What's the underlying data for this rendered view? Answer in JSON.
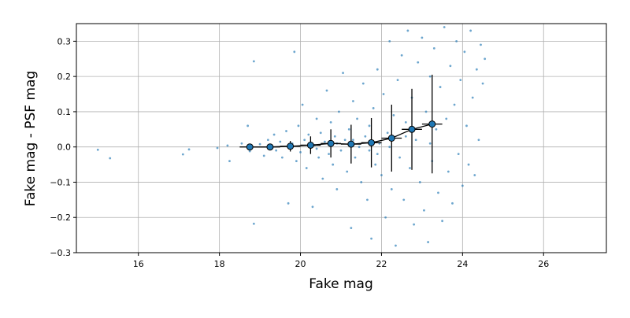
{
  "chart_data": {
    "type": "scatter",
    "xlabel": "Fake mag",
    "ylabel": "Fake mag - PSF mag",
    "xlim": [
      14.47,
      27.55
    ],
    "ylim": [
      -0.3,
      0.35
    ],
    "xticks": [
      16,
      18,
      20,
      22,
      24,
      26
    ],
    "yticks": [
      {
        "value": -0.3,
        "label": "−0.3"
      },
      {
        "value": -0.2,
        "label": "−0.2"
      },
      {
        "value": -0.1,
        "label": "−0.1"
      },
      {
        "value": 0,
        "label": "0.0"
      },
      0.1,
      0.2,
      0.3
    ],
    "grid": true,
    "series": [
      {
        "color": "#1f77b4",
        "x": [
          15.0,
          15.3,
          17.1,
          17.25,
          17.95,
          18.2,
          18.25,
          18.55,
          18.7,
          18.75,
          18.85,
          18.85,
          19.0,
          19.1,
          19.2,
          19.35,
          19.4,
          19.5,
          19.55,
          19.65,
          19.7,
          19.8,
          19.85,
          19.9,
          19.95,
          20.0,
          20.05,
          20.1,
          20.15,
          20.2,
          20.3,
          20.35,
          20.4,
          20.45,
          20.5,
          20.55,
          20.6,
          20.65,
          20.7,
          20.75,
          20.8,
          20.85,
          20.9,
          20.95,
          21.0,
          21.05,
          21.1,
          21.15,
          21.2,
          21.25,
          21.3,
          21.35,
          21.4,
          21.45,
          21.5,
          21.55,
          21.6,
          21.65,
          21.7,
          21.75,
          21.8,
          21.85,
          21.9,
          21.95,
          22.0,
          22.05,
          22.1,
          22.15,
          22.2,
          22.25,
          22.3,
          22.35,
          22.4,
          22.45,
          22.5,
          22.55,
          22.6,
          22.65,
          22.7,
          22.75,
          22.8,
          22.85,
          22.9,
          22.95,
          23.0,
          23.05,
          23.1,
          23.15,
          23.2,
          23.25,
          23.3,
          23.35,
          23.4,
          23.45,
          23.5,
          23.55,
          23.6,
          23.65,
          23.7,
          23.75,
          23.8,
          23.85,
          23.9,
          23.95,
          24.0,
          24.05,
          24.1,
          24.15,
          24.2,
          24.25,
          24.3,
          24.35,
          24.4,
          24.45,
          24.5,
          24.55,
          21.3,
          21.7,
          22.2,
          20.9,
          22.6,
          23.2,
          20.4,
          21.9
        ],
        "values": [
          -0.008,
          -0.032,
          -0.021,
          -0.007,
          -0.003,
          0.004,
          -0.04,
          0.01,
          0.06,
          -0.012,
          0.243,
          -0.218,
          0.008,
          -0.025,
          0.02,
          0.035,
          -0.01,
          0.015,
          -0.03,
          0.045,
          -0.16,
          0.01,
          0.27,
          -0.04,
          0.06,
          -0.015,
          0.12,
          0.02,
          -0.06,
          0.035,
          -0.17,
          0.005,
          0.08,
          -0.03,
          0.04,
          -0.09,
          0.015,
          0.16,
          -0.02,
          0.07,
          -0.05,
          0.03,
          -0.12,
          0.1,
          -0.01,
          0.21,
          0.02,
          -0.07,
          0.05,
          -0.23,
          0.13,
          -0.03,
          0.08,
          0.0,
          -0.1,
          0.18,
          0.03,
          -0.15,
          0.06,
          -0.26,
          0.11,
          -0.05,
          0.22,
          0.01,
          -0.08,
          0.15,
          -0.2,
          0.04,
          0.3,
          -0.12,
          0.09,
          -0.28,
          0.19,
          -0.03,
          0.26,
          -0.15,
          0.07,
          0.33,
          -0.06,
          0.14,
          -0.22,
          0.02,
          0.24,
          -0.1,
          0.31,
          -0.18,
          0.1,
          -0.27,
          0.2,
          -0.04,
          0.28,
          0.05,
          -0.13,
          0.17,
          -0.21,
          0.34,
          0.08,
          -0.07,
          0.23,
          -0.16,
          0.12,
          0.3,
          -0.02,
          0.19,
          -0.11,
          0.27,
          0.06,
          -0.05,
          0.33,
          0.14,
          -0.08,
          0.22,
          0.02,
          0.29,
          0.18,
          0.25,
          0.02,
          -0.01,
          0.0,
          0.01,
          0.03,
          0.01,
          -0.005,
          -0.02
        ]
      },
      {
        "type": "errorbar",
        "color": "#1f77b4",
        "x": [
          18.75,
          19.25,
          19.75,
          20.25,
          20.75,
          21.25,
          21.75,
          22.25,
          22.75,
          23.25
        ],
        "values": [
          0.0,
          0.0,
          0.002,
          0.005,
          0.01,
          0.008,
          0.012,
          0.025,
          0.05,
          0.065
        ],
        "yerr": [
          0.005,
          0.008,
          0.015,
          0.025,
          0.04,
          0.055,
          0.07,
          0.095,
          0.115,
          0.14
        ],
        "xerr": [
          0.25,
          0.25,
          0.25,
          0.25,
          0.25,
          0.25,
          0.25,
          0.25,
          0.25,
          0.25
        ]
      }
    ]
  }
}
